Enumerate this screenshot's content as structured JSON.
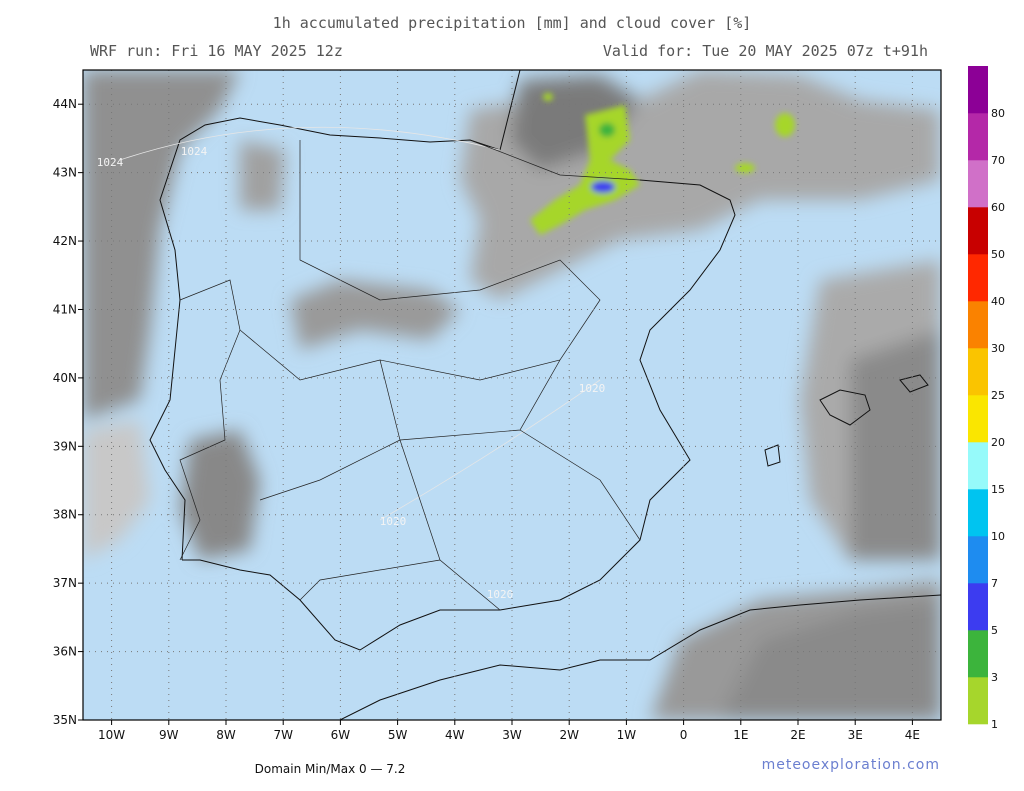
{
  "header": {
    "title": "1h accumulated precipitation [mm] and cloud cover [%]",
    "run": "WRF run: Fri 16 MAY 2025 12z",
    "valid": "Valid for: Tue 20 MAY 2025 07z  t+91h"
  },
  "map": {
    "xlim": [
      -10.5,
      4.5
    ],
    "ylim": [
      35,
      44.5
    ],
    "xticks": [
      {
        "value": -10,
        "label": "10W"
      },
      {
        "value": -9,
        "label": "9W"
      },
      {
        "value": -8,
        "label": "8W"
      },
      {
        "value": -7,
        "label": "7W"
      },
      {
        "value": -6,
        "label": "6W"
      },
      {
        "value": -5,
        "label": "5W"
      },
      {
        "value": -4,
        "label": "4W"
      },
      {
        "value": -3,
        "label": "3W"
      },
      {
        "value": -2,
        "label": "2W"
      },
      {
        "value": -1,
        "label": "1W"
      },
      0,
      {
        "value": 1,
        "label": "1E"
      },
      {
        "value": 2,
        "label": "2E"
      },
      {
        "value": 3,
        "label": "3E"
      },
      {
        "value": 4,
        "label": "4E"
      }
    ],
    "yticks": [
      {
        "value": 35,
        "label": "35N"
      },
      {
        "value": 36,
        "label": "36N"
      },
      {
        "value": 37,
        "label": "37N"
      },
      {
        "value": 38,
        "label": "38N"
      },
      {
        "value": 39,
        "label": "39N"
      },
      {
        "value": 40,
        "label": "40N"
      },
      {
        "value": 41,
        "label": "41N"
      },
      {
        "value": 42,
        "label": "42N"
      },
      {
        "value": 43,
        "label": "43N"
      },
      {
        "value": 44,
        "label": "44N"
      }
    ],
    "isobar_labels": [
      "1024",
      "1024",
      "1020",
      "1020",
      "1020"
    ]
  },
  "colorbar": {
    "levels": [
      1,
      3,
      5,
      7,
      10,
      15,
      20,
      25,
      30,
      40,
      50,
      60,
      70,
      80
    ],
    "colors": [
      "#a6d62c",
      "#3cb43c",
      "#3c3cf0",
      "#1e8cf0",
      "#00c4f0",
      "#96fafa",
      "#fae600",
      "#fac400",
      "#fa8200",
      "#ff2800",
      "#c80000",
      "#d070c8",
      "#b428a8",
      "#8c0096"
    ]
  },
  "footer": {
    "minmax": "Domain Min/Max 0 — 7.2",
    "credit": "meteoexploration.com"
  }
}
